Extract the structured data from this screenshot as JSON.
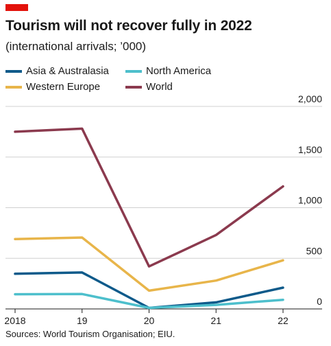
{
  "header": {
    "title": "Tourism will not recover fully in 2022",
    "subtitle": "(international arrivals; ’000)",
    "brand_color": "#e3120b"
  },
  "footer": {
    "source": "Sources: World Tourism Organisation; EIU."
  },
  "chart_data": {
    "type": "line",
    "title": "Tourism will not recover fully in 2022",
    "subtitle": "(international arrivals; ’000)",
    "xlabel": "",
    "ylabel": "",
    "x": [
      2018,
      2019,
      2020,
      2021,
      2022
    ],
    "x_tick_labels": [
      "2018",
      "19",
      "20",
      "21",
      "22"
    ],
    "ylim": [
      0,
      2000
    ],
    "y_ticks": [
      0,
      500,
      1000,
      1500,
      2000
    ],
    "y_tick_labels": [
      "0",
      "500",
      "1,000",
      "1,500",
      "2,000"
    ],
    "y_axis_side": "right",
    "grid": true,
    "legend_position": "top-left",
    "series": [
      {
        "name": "Asia & Australasia",
        "color": "#0e5a8a",
        "values": [
          347,
          360,
          10,
          65,
          210
        ]
      },
      {
        "name": "North America",
        "color": "#4dbfcc",
        "values": [
          145,
          147,
          10,
          40,
          90
        ]
      },
      {
        "name": "Western Europe",
        "color": "#e8b54a",
        "values": [
          690,
          705,
          180,
          280,
          480
        ]
      },
      {
        "name": "World",
        "color": "#8b3a4e",
        "values": [
          1750,
          1780,
          420,
          730,
          1210
        ]
      }
    ]
  }
}
